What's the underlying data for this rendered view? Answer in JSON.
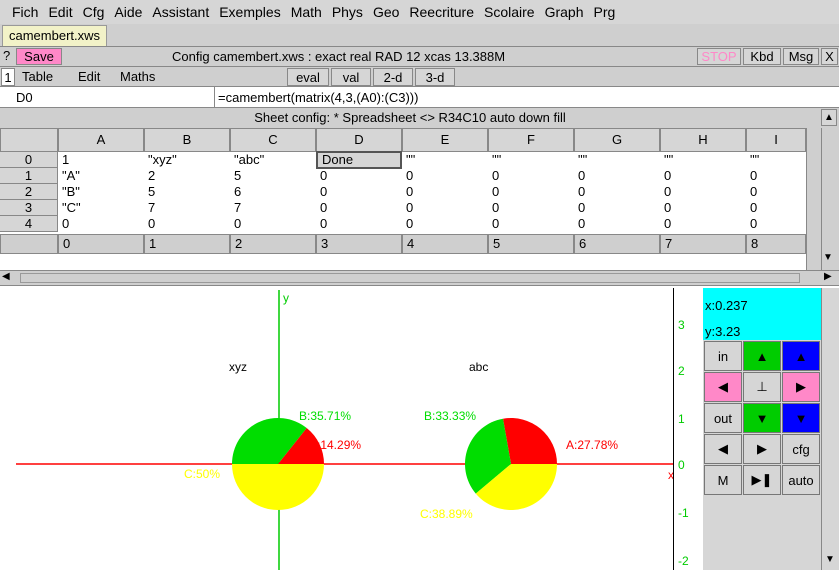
{
  "menu": [
    "Fich",
    "Edit",
    "Cfg",
    "Aide",
    "Assistant",
    "Exemples",
    "Math",
    "Phys",
    "Geo",
    "Reecriture",
    "Scolaire",
    "Graph",
    "Prg"
  ],
  "file_tab": "camembert.xws",
  "titlebar": {
    "help": "?",
    "save": "Save",
    "config": "Config camembert.xws : exact real RAD 12 xcas 13.388M",
    "stop": "STOP",
    "kbd": "Kbd",
    "msg": "Msg",
    "close": "X"
  },
  "toolbar": {
    "level": "1",
    "items": [
      "Table",
      "Edit",
      "Maths"
    ],
    "eval": "eval",
    "val": "val",
    "two_d": "2-d",
    "three_d": "3-d"
  },
  "cmdline": {
    "cell_ref": "D0",
    "formula": "=camembert(matrix(4,3,(A0):(C3)))"
  },
  "sheet_config": "Sheet config: * Spreadsheet <> R34C10 auto down fill",
  "grid": {
    "columns": [
      "A",
      "B",
      "C",
      "D",
      "E",
      "F",
      "G",
      "H",
      "I"
    ],
    "rows": [
      {
        "head": "0",
        "cells": [
          "1",
          "\"xyz\"",
          "\"abc\"",
          "Done",
          "\"\"",
          "\"\"",
          "\"\"",
          "\"\"",
          "\"\""
        ]
      },
      {
        "head": "1",
        "cells": [
          "\"A\"",
          "2",
          "5",
          "0",
          "0",
          "0",
          "0",
          "0",
          "0"
        ]
      },
      {
        "head": "2",
        "cells": [
          "\"B\"",
          "5",
          "6",
          "0",
          "0",
          "0",
          "0",
          "0",
          "0"
        ]
      },
      {
        "head": "3",
        "cells": [
          "\"C\"",
          "7",
          "7",
          "0",
          "0",
          "0",
          "0",
          "0",
          "0"
        ]
      },
      {
        "head": "4",
        "cells": [
          "0",
          "0",
          "0",
          "0",
          "0",
          "0",
          "0",
          "0",
          "0"
        ]
      }
    ],
    "index_row": [
      "0",
      "1",
      "2",
      "3",
      "4",
      "5",
      "6",
      "7",
      "8"
    ]
  },
  "plot": {
    "axis_x": "x",
    "axis_y": "y",
    "y_ticks": [
      "3",
      "2",
      "1",
      "0",
      "-1",
      "-2"
    ],
    "pie1": {
      "title": "xyz",
      "labels": {
        "a": "A:14.29%",
        "b": "B:35.71%",
        "c": "C:50%"
      },
      "fractions": {
        "a": 0.1429,
        "b": 0.3571,
        "c": 0.5
      }
    },
    "pie2": {
      "title": "abc",
      "labels": {
        "a": "A:27.78%",
        "b": "B:33.33%",
        "c": "C:38.89%"
      },
      "fractions": {
        "a": 0.2778,
        "b": 0.3333,
        "c": 0.3889
      }
    },
    "colors": {
      "a": "#ff0000",
      "b": "#00dd00",
      "c": "#ffff00",
      "axis_x": "#ff0000",
      "axis_y": "#00cc00"
    }
  },
  "controls": {
    "x_readout": "x:0.237",
    "y_readout": "y:3.23",
    "in": "in",
    "out": "out",
    "center": "⊥",
    "cfg": "cfg",
    "m": "M",
    "auto": "auto"
  }
}
